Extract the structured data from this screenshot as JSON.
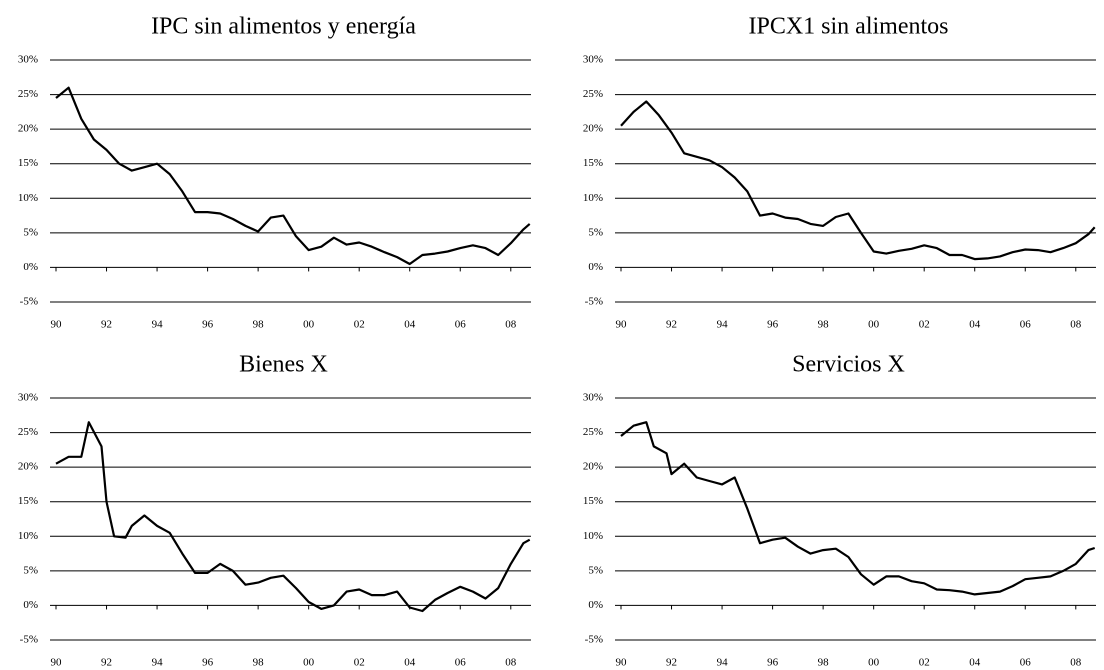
{
  "chart_data": [
    {
      "type": "line",
      "title": "IPC sin alimentos y energía",
      "color": "#000000",
      "grid": true,
      "x": [
        1990,
        1990.5,
        1991,
        1991.5,
        1992,
        1992.5,
        1993,
        1993.5,
        1994,
        1994.5,
        1995,
        1995.5,
        1996,
        1996.5,
        1997,
        1997.5,
        1998,
        1998.5,
        1999,
        1999.5,
        2000,
        2000.5,
        2001,
        2001.5,
        2002,
        2002.5,
        2003,
        2003.5,
        2004,
        2004.5,
        2005,
        2005.5,
        2006,
        2006.5,
        2007,
        2007.5,
        2008,
        2008.5,
        2008.75
      ],
      "values": [
        24.5,
        26,
        21.5,
        18.5,
        17,
        15,
        14,
        14.5,
        15,
        13.5,
        11,
        8,
        8,
        7.8,
        7,
        6,
        5.2,
        7.2,
        7.5,
        4.5,
        2.5,
        3,
        4.3,
        3.3,
        3.6,
        3,
        2.2,
        1.5,
        0.5,
        1.8,
        2,
        2.3,
        2.8,
        3.2,
        2.8,
        1.8,
        3.5,
        5.5,
        6.3
      ],
      "xlim": [
        1990,
        2008.8
      ],
      "xticks": [
        {
          "value": 1990,
          "label": "90"
        },
        {
          "value": 1992,
          "label": "92"
        },
        {
          "value": 1994,
          "label": "94"
        },
        {
          "value": 1996,
          "label": "96"
        },
        {
          "value": 1998,
          "label": "98"
        },
        {
          "value": 2000,
          "label": "00"
        },
        {
          "value": 2002,
          "label": "02"
        },
        {
          "value": 2004,
          "label": "04"
        },
        {
          "value": 2006,
          "label": "06"
        },
        {
          "value": 2008,
          "label": "08"
        }
      ],
      "ylim": [
        -5,
        30
      ],
      "yticks": [
        {
          "value": -5,
          "label": "-5%"
        },
        {
          "value": 0,
          "label": "0%"
        },
        {
          "value": 5,
          "label": "5%"
        },
        {
          "value": 10,
          "label": "10%"
        },
        {
          "value": 15,
          "label": "15%"
        },
        {
          "value": 20,
          "label": "20%"
        },
        {
          "value": 25,
          "label": "25%"
        },
        {
          "value": 30,
          "label": "30%"
        }
      ]
    },
    {
      "type": "line",
      "title": "IPCX1 sin alimentos",
      "color": "#000000",
      "grid": true,
      "x": [
        1990,
        1990.5,
        1991,
        1991.5,
        1992,
        1992.5,
        1993,
        1993.5,
        1994,
        1994.5,
        1995,
        1995.5,
        1996,
        1996.5,
        1997,
        1997.5,
        1998,
        1998.5,
        1999,
        1999.5,
        2000,
        2000.5,
        2001,
        2001.5,
        2002,
        2002.5,
        2003,
        2003.5,
        2004,
        2004.5,
        2005,
        2005.5,
        2006,
        2006.5,
        2007,
        2007.5,
        2008,
        2008.5,
        2008.75
      ],
      "values": [
        20.5,
        22.5,
        24,
        22,
        19.5,
        16.5,
        16,
        15.5,
        14.5,
        13,
        11,
        7.5,
        7.8,
        7.2,
        7,
        6.3,
        6,
        7.3,
        7.8,
        5,
        2.3,
        2,
        2.4,
        2.7,
        3.2,
        2.8,
        1.8,
        1.8,
        1.2,
        1.3,
        1.6,
        2.2,
        2.6,
        2.5,
        2.2,
        2.8,
        3.5,
        4.8,
        5.8
      ],
      "xlim": [
        1990,
        2008.8
      ],
      "xticks": [
        {
          "value": 1990,
          "label": "90"
        },
        {
          "value": 1992,
          "label": "92"
        },
        {
          "value": 1994,
          "label": "94"
        },
        {
          "value": 1996,
          "label": "96"
        },
        {
          "value": 1998,
          "label": "98"
        },
        {
          "value": 2000,
          "label": "00"
        },
        {
          "value": 2002,
          "label": "02"
        },
        {
          "value": 2004,
          "label": "04"
        },
        {
          "value": 2006,
          "label": "06"
        },
        {
          "value": 2008,
          "label": "08"
        }
      ],
      "ylim": [
        -5,
        30
      ],
      "yticks": [
        {
          "value": -5,
          "label": "-5%"
        },
        {
          "value": 0,
          "label": "0%"
        },
        {
          "value": 5,
          "label": "5%"
        },
        {
          "value": 10,
          "label": "10%"
        },
        {
          "value": 15,
          "label": "15%"
        },
        {
          "value": 20,
          "label": "20%"
        },
        {
          "value": 25,
          "label": "25%"
        },
        {
          "value": 30,
          "label": "30%"
        }
      ]
    },
    {
      "type": "line",
      "title": "Bienes X",
      "color": "#000000",
      "grid": true,
      "x": [
        1990,
        1990.5,
        1991,
        1991.3,
        1991.8,
        1992,
        1992.3,
        1992.75,
        1993,
        1993.5,
        1994,
        1994.5,
        1995,
        1995.5,
        1996,
        1996.5,
        1997,
        1997.5,
        1998,
        1998.5,
        1999,
        1999.5,
        2000,
        2000.5,
        2001,
        2001.5,
        2002,
        2002.5,
        2003,
        2003.5,
        2004,
        2004.5,
        2005,
        2005.5,
        2006,
        2006.5,
        2007,
        2007.5,
        2008,
        2008.5,
        2008.75
      ],
      "values": [
        20.5,
        21.5,
        21.5,
        26.5,
        23,
        15,
        10,
        9.8,
        11.5,
        13,
        11.5,
        10.5,
        7.5,
        4.7,
        4.7,
        6,
        5,
        3,
        3.3,
        4,
        4.3,
        2.5,
        0.5,
        -0.5,
        0,
        2,
        2.3,
        1.5,
        1.5,
        2,
        -0.3,
        -0.8,
        0.8,
        1.8,
        2.7,
        2,
        1,
        2.5,
        6,
        9,
        9.5
      ],
      "xlim": [
        1990,
        2008.8
      ],
      "xticks": [
        {
          "value": 1990,
          "label": "90"
        },
        {
          "value": 1992,
          "label": "92"
        },
        {
          "value": 1994,
          "label": "94"
        },
        {
          "value": 1996,
          "label": "96"
        },
        {
          "value": 1998,
          "label": "98"
        },
        {
          "value": 2000,
          "label": "00"
        },
        {
          "value": 2002,
          "label": "02"
        },
        {
          "value": 2004,
          "label": "04"
        },
        {
          "value": 2006,
          "label": "06"
        },
        {
          "value": 2008,
          "label": "08"
        }
      ],
      "ylim": [
        -5,
        30
      ],
      "yticks": [
        {
          "value": -5,
          "label": "-5%"
        },
        {
          "value": 0,
          "label": "0%"
        },
        {
          "value": 5,
          "label": "5%"
        },
        {
          "value": 10,
          "label": "10%"
        },
        {
          "value": 15,
          "label": "15%"
        },
        {
          "value": 20,
          "label": "20%"
        },
        {
          "value": 25,
          "label": "25%"
        },
        {
          "value": 30,
          "label": "30%"
        }
      ]
    },
    {
      "type": "line",
      "title": "Servicios X",
      "color": "#000000",
      "grid": true,
      "x": [
        1990,
        1990.5,
        1991,
        1991.3,
        1991.8,
        1992,
        1992.5,
        1993,
        1993.5,
        1994,
        1994.5,
        1995,
        1995.5,
        1996,
        1996.5,
        1997,
        1997.5,
        1998,
        1998.5,
        1999,
        1999.5,
        2000,
        2000.5,
        2001,
        2001.5,
        2002,
        2002.5,
        2003,
        2003.5,
        2004,
        2004.5,
        2005,
        2005.5,
        2006,
        2006.5,
        2007,
        2007.5,
        2008,
        2008.5,
        2008.75
      ],
      "values": [
        24.5,
        26,
        26.5,
        23,
        22,
        19,
        20.5,
        18.5,
        18,
        17.5,
        18.5,
        14,
        9,
        9.5,
        9.8,
        8.5,
        7.5,
        8,
        8.2,
        7,
        4.5,
        3,
        4.2,
        4.2,
        3.5,
        3.2,
        2.3,
        2.2,
        2,
        1.6,
        1.8,
        2,
        2.8,
        3.8,
        4,
        4.2,
        5,
        6,
        8,
        8.3
      ],
      "xlim": [
        1990,
        2008.8
      ],
      "xticks": [
        {
          "value": 1990,
          "label": "90"
        },
        {
          "value": 1992,
          "label": "92"
        },
        {
          "value": 1994,
          "label": "94"
        },
        {
          "value": 1996,
          "label": "96"
        },
        {
          "value": 1998,
          "label": "98"
        },
        {
          "value": 2000,
          "label": "00"
        },
        {
          "value": 2002,
          "label": "02"
        },
        {
          "value": 2004,
          "label": "04"
        },
        {
          "value": 2006,
          "label": "06"
        },
        {
          "value": 2008,
          "label": "08"
        }
      ],
      "ylim": [
        -5,
        30
      ],
      "yticks": [
        {
          "value": -5,
          "label": "-5%"
        },
        {
          "value": 0,
          "label": "0%"
        },
        {
          "value": 5,
          "label": "5%"
        },
        {
          "value": 10,
          "label": "10%"
        },
        {
          "value": 15,
          "label": "15%"
        },
        {
          "value": 20,
          "label": "20%"
        },
        {
          "value": 25,
          "label": "25%"
        },
        {
          "value": 30,
          "label": "30%"
        }
      ]
    }
  ]
}
